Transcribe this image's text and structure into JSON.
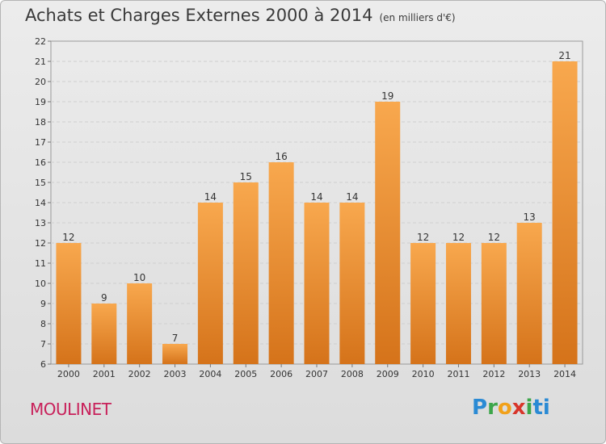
{
  "header": {
    "title": "Achats et Charges Externes 2000 à 2014",
    "subtitle": "(en milliers d'€)"
  },
  "footer": {
    "commune": "MOULINET",
    "logo_letters": [
      "P",
      "r",
      "o",
      "x",
      "i",
      "ti"
    ]
  },
  "colors": {
    "bar_top": "#f8a84e",
    "bar_bottom": "#d5731a",
    "grid": "#cfcfcf",
    "title": "#3a3a3a",
    "commune": "#c8205a"
  },
  "chart_data": {
    "type": "bar",
    "title": "Achats et Charges Externes 2000 à 2014",
    "subtitle": "(en milliers d'€)",
    "xlabel": "",
    "ylabel": "",
    "categories": [
      "2000",
      "2001",
      "2002",
      "2003",
      "2004",
      "2005",
      "2006",
      "2007",
      "2008",
      "2009",
      "2010",
      "2011",
      "2012",
      "2013",
      "2014"
    ],
    "values": [
      12,
      9,
      10,
      7,
      14,
      15,
      16,
      14,
      14,
      19,
      12,
      12,
      12,
      13,
      21
    ],
    "ylim": [
      6,
      22
    ],
    "yticks": [
      6,
      7,
      8,
      9,
      10,
      11,
      12,
      13,
      14,
      15,
      16,
      17,
      18,
      19,
      20,
      21,
      22
    ],
    "grid": true,
    "data_labels": true
  }
}
